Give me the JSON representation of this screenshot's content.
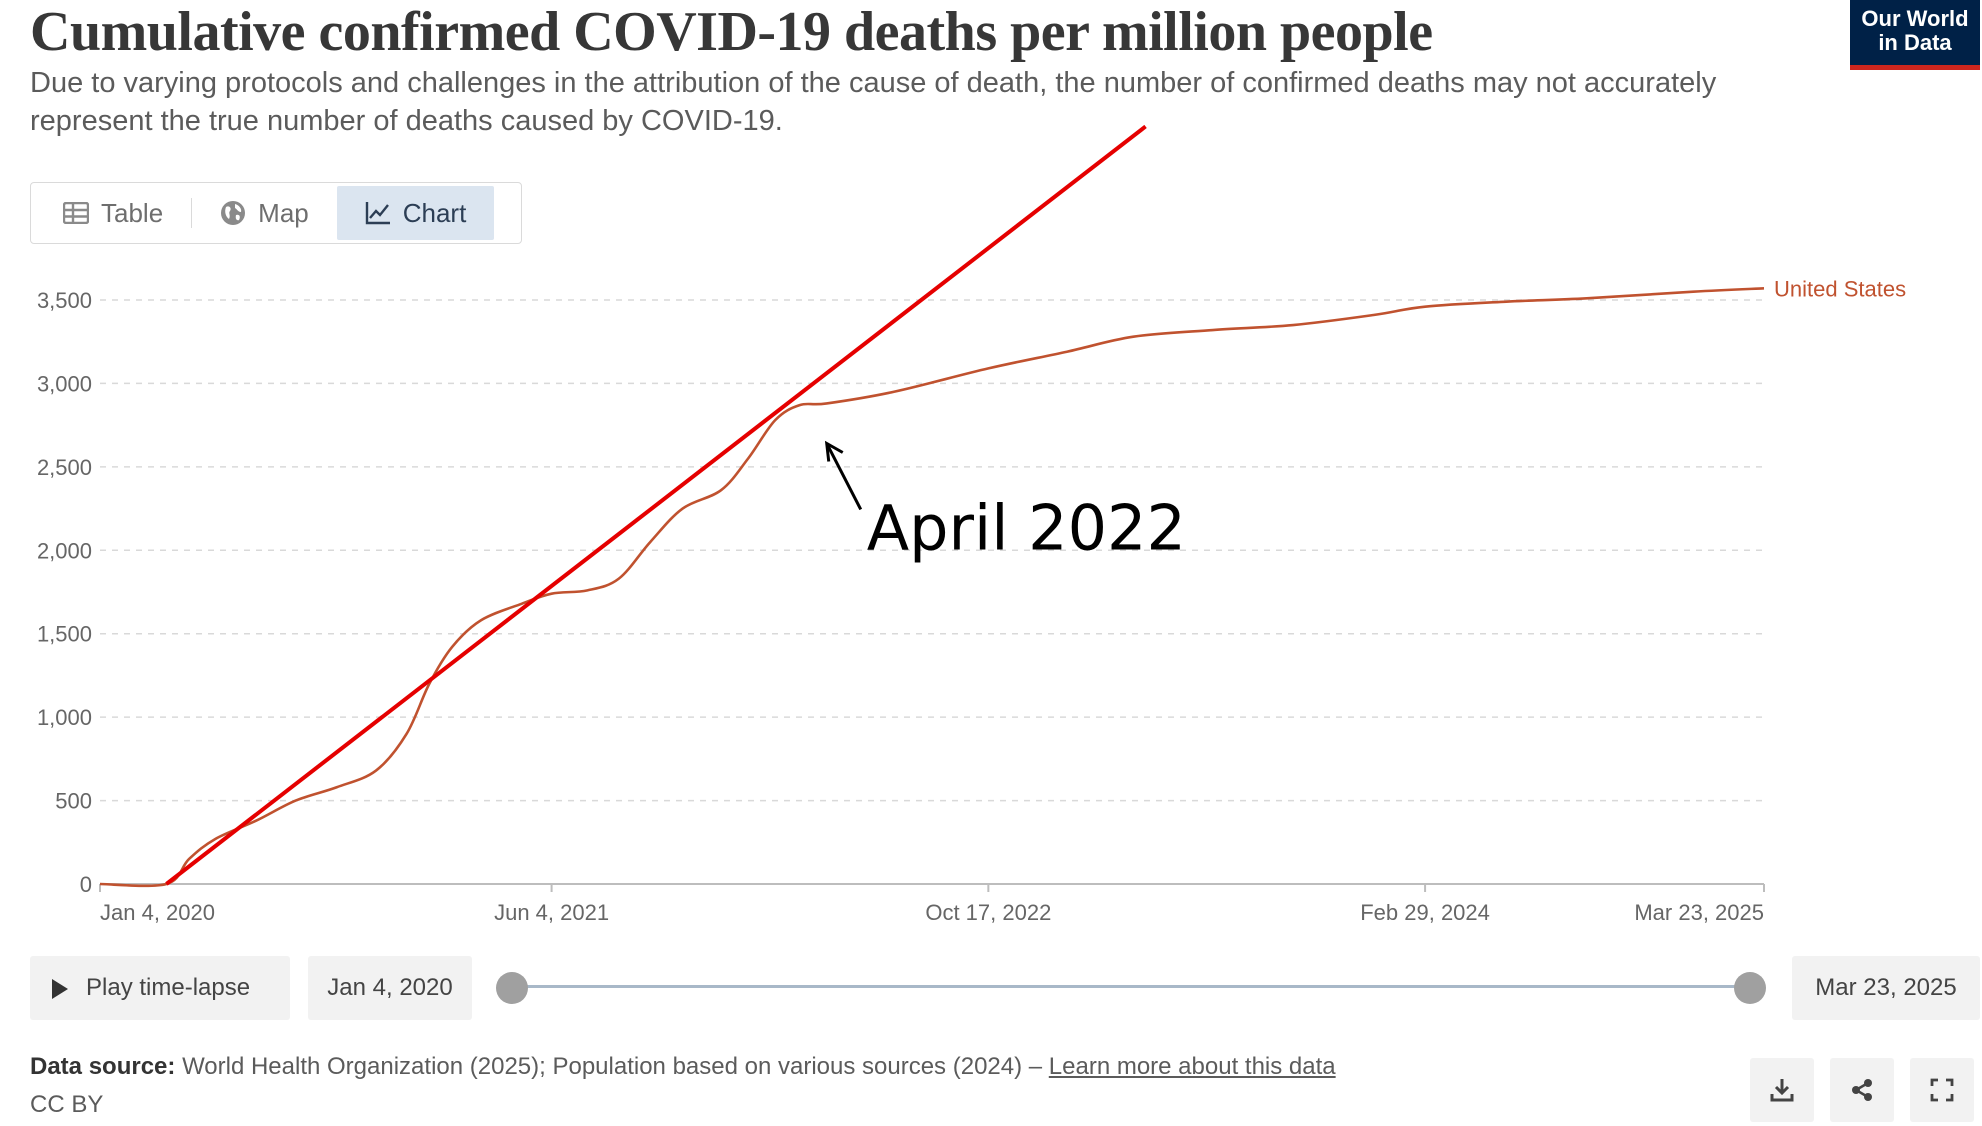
{
  "header": {
    "title": "Cumulative confirmed COVID-19 deaths per million people",
    "subtitle": "Due to varying protocols and challenges in the attribution of the cause of death, the number of confirmed deaths may not accurately represent the true number of deaths caused by COVID-19.",
    "logo_line1": "Our World",
    "logo_line2": "in Data",
    "logo_bg": "#002147",
    "logo_accent": "#ce261e"
  },
  "tabs": [
    {
      "label": "Table",
      "icon": "table-icon",
      "active": false
    },
    {
      "label": "Map",
      "icon": "globe-icon",
      "active": false
    },
    {
      "label": "Chart",
      "icon": "line-chart-icon",
      "active": true
    }
  ],
  "chart_data": {
    "type": "line",
    "title": "Cumulative confirmed COVID-19 deaths per million people",
    "ylim": [
      0,
      3500
    ],
    "y_ticks": [
      0,
      500,
      1000,
      1500,
      2000,
      2500,
      3000,
      3500
    ],
    "y_tick_labels": [
      "0",
      "500",
      "1,000",
      "1,500",
      "2,000",
      "2,500",
      "3,000",
      "3,500"
    ],
    "x_range": [
      "2020-01-04",
      "2025-03-23"
    ],
    "x_ticks": [
      "2020-01-04",
      "2021-06-04",
      "2022-10-17",
      "2024-02-29",
      "2025-03-23"
    ],
    "x_tick_labels": [
      "Jan 4, 2020",
      "Jun 4, 2021",
      "Oct 17, 2022",
      "Feb 29, 2024",
      "Mar 23, 2025"
    ],
    "grid": true,
    "series": [
      {
        "name": "United States",
        "color": "#c0522f",
        "points": [
          [
            "2020-01-04",
            0
          ],
          [
            "2020-03-20",
            0
          ],
          [
            "2020-04-15",
            150
          ],
          [
            "2020-05-15",
            270
          ],
          [
            "2020-07-01",
            380
          ],
          [
            "2020-08-15",
            500
          ],
          [
            "2020-10-01",
            580
          ],
          [
            "2020-11-15",
            680
          ],
          [
            "2020-12-20",
            900
          ],
          [
            "2021-01-15",
            1200
          ],
          [
            "2021-02-10",
            1420
          ],
          [
            "2021-03-15",
            1580
          ],
          [
            "2021-05-01",
            1680
          ],
          [
            "2021-06-04",
            1740
          ],
          [
            "2021-07-15",
            1760
          ],
          [
            "2021-08-20",
            1830
          ],
          [
            "2021-09-25",
            2050
          ],
          [
            "2021-11-01",
            2250
          ],
          [
            "2021-12-15",
            2360
          ],
          [
            "2022-01-15",
            2550
          ],
          [
            "2022-02-15",
            2780
          ],
          [
            "2022-03-15",
            2870
          ],
          [
            "2022-04-15",
            2880
          ],
          [
            "2022-07-01",
            2950
          ],
          [
            "2022-10-17",
            3090
          ],
          [
            "2023-01-15",
            3190
          ],
          [
            "2023-04-01",
            3280
          ],
          [
            "2023-07-01",
            3320
          ],
          [
            "2023-10-01",
            3350
          ],
          [
            "2024-01-01",
            3410
          ],
          [
            "2024-02-29",
            3460
          ],
          [
            "2024-06-01",
            3490
          ],
          [
            "2024-09-01",
            3510
          ],
          [
            "2025-01-01",
            3550
          ],
          [
            "2025-03-23",
            3570
          ]
        ]
      }
    ],
    "annotation": {
      "text": "April 2022",
      "trend_line_color": "#e50000",
      "trend_line": [
        [
          "2020-03-20",
          0
        ],
        [
          "2022-04-15",
          2880
        ],
        [
          "2023-04-15",
          4540
        ]
      ],
      "arrow_target": [
        "2022-04-15",
        2640
      ]
    }
  },
  "timeline": {
    "play_label": "Play time-lapse",
    "start_date": "Jan 4, 2020",
    "end_date": "Mar 23, 2025"
  },
  "footer": {
    "source_label": "Data source:",
    "source_text": "World Health Organization (2025); Population based on various sources (2024) – ",
    "learn_more": "Learn more about this data",
    "license": "CC BY"
  }
}
